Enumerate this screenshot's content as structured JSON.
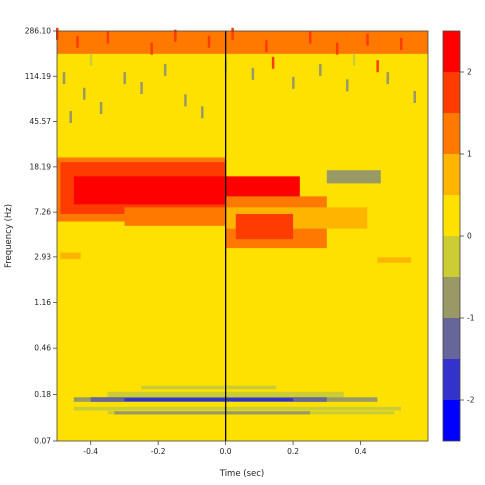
{
  "chart_data": {
    "type": "heatmap",
    "title": "",
    "xlabel": "Time (sec)",
    "ylabel": "Frequency (Hz)",
    "x_range": [
      -0.5,
      0.6
    ],
    "x_ticks": [
      -0.4,
      -0.2,
      0.0,
      0.2,
      0.4
    ],
    "x_tick_labels": [
      "-0.4",
      "-0.2",
      "0.0",
      "0.2",
      "0.4"
    ],
    "y_scale": "log",
    "y_range_hz": [
      0.07,
      286.1
    ],
    "y_ticks": [
      "0.07",
      "0.18",
      "0.46",
      "1.16",
      "2.93",
      "7.26",
      "18.19",
      "45.57",
      "114.19",
      "286.10"
    ],
    "event_marker_time": 0.0,
    "colorbar": {
      "range": [
        -2.5,
        2.5
      ],
      "ticks": [
        "-2",
        "-1",
        "0",
        "1",
        "2"
      ],
      "levels": [
        {
          "from": -2.5,
          "to": -2.0,
          "color": "#0000ff"
        },
        {
          "from": -2.0,
          "to": -1.5,
          "color": "#3333cc"
        },
        {
          "from": -1.5,
          "to": -1.0,
          "color": "#66669a"
        },
        {
          "from": -1.0,
          "to": -0.5,
          "color": "#999966"
        },
        {
          "from": -0.5,
          "to": 0.0,
          "color": "#cccc33"
        },
        {
          "from": 0.0,
          "to": 0.5,
          "color": "#ffe100"
        },
        {
          "from": 0.5,
          "to": 1.0,
          "color": "#ffb400"
        },
        {
          "from": 1.0,
          "to": 1.5,
          "color": "#ff7800"
        },
        {
          "from": 1.5,
          "to": 2.0,
          "color": "#ff3c00"
        },
        {
          "from": 2.0,
          "to": 2.5,
          "color": "#ff0000"
        }
      ]
    },
    "background_level": 0.25,
    "regions": [
      {
        "t0": -0.5,
        "t1": 0.0,
        "f0": 6.0,
        "f1": 22.0,
        "level": 1.25
      },
      {
        "t0": -0.49,
        "t1": 0.0,
        "f0": 7.0,
        "f1": 20.0,
        "level": 1.75
      },
      {
        "t0": -0.45,
        "t1": 0.22,
        "f0": 8.5,
        "f1": 15.0,
        "level": 2.25
      },
      {
        "t0": -0.3,
        "t1": 0.05,
        "f0": 5.5,
        "f1": 8.0,
        "level": 1.25
      },
      {
        "t0": 0.0,
        "t1": 0.3,
        "f0": 3.5,
        "f1": 10.0,
        "level": 1.25
      },
      {
        "t0": 0.0,
        "t1": 0.42,
        "f0": 5.2,
        "f1": 8.0,
        "level": 0.75
      },
      {
        "t0": 0.03,
        "t1": 0.2,
        "f0": 4.2,
        "f1": 7.0,
        "level": 1.75
      },
      {
        "t0": -0.49,
        "t1": -0.43,
        "f0": 2.8,
        "f1": 3.2,
        "level": 0.75
      },
      {
        "t0": 0.45,
        "t1": 0.55,
        "f0": 2.6,
        "f1": 2.9,
        "level": 0.75
      },
      {
        "t0": 0.3,
        "t1": 0.46,
        "f0": 13.0,
        "f1": 17.0,
        "level": -0.75
      },
      {
        "t0": -0.5,
        "t1": 0.6,
        "f0": 180.0,
        "f1": 286.1,
        "level": 1.25
      },
      {
        "t0": -0.25,
        "t1": 0.15,
        "f0": 0.2,
        "f1": 0.215,
        "level": -0.25
      },
      {
        "t0": -0.35,
        "t1": 0.35,
        "f0": 0.17,
        "f1": 0.19,
        "level": -0.25
      },
      {
        "t0": -0.45,
        "t1": 0.45,
        "f0": 0.155,
        "f1": 0.17,
        "level": -0.75
      },
      {
        "t0": -0.4,
        "t1": 0.3,
        "f0": 0.155,
        "f1": 0.17,
        "level": -1.25
      },
      {
        "t0": -0.3,
        "t1": 0.2,
        "f0": 0.157,
        "f1": 0.167,
        "level": -1.75
      },
      {
        "t0": -0.45,
        "t1": 0.52,
        "f0": 0.13,
        "f1": 0.14,
        "level": -0.25
      },
      {
        "t0": -0.35,
        "t1": 0.5,
        "f0": 0.12,
        "f1": 0.128,
        "level": -0.25
      },
      {
        "t0": -0.33,
        "t1": 0.25,
        "f0": 0.12,
        "f1": 0.128,
        "level": -0.75
      }
    ],
    "speckles": [
      {
        "t": -0.5,
        "f": 270,
        "level": 1.75
      },
      {
        "t": -0.44,
        "f": 230,
        "level": 1.75
      },
      {
        "t": -0.35,
        "f": 250,
        "level": 1.75
      },
      {
        "t": -0.22,
        "f": 200,
        "level": 1.75
      },
      {
        "t": -0.15,
        "f": 260,
        "level": 1.75
      },
      {
        "t": -0.05,
        "f": 230,
        "level": 1.75
      },
      {
        "t": 0.02,
        "f": 270,
        "level": 1.75
      },
      {
        "t": 0.12,
        "f": 210,
        "level": 1.75
      },
      {
        "t": 0.25,
        "f": 250,
        "level": 1.75
      },
      {
        "t": 0.33,
        "f": 200,
        "level": 1.75
      },
      {
        "t": 0.42,
        "f": 240,
        "level": 1.75
      },
      {
        "t": 0.52,
        "f": 220,
        "level": 1.75
      },
      {
        "t": -0.48,
        "f": 110,
        "level": -0.75
      },
      {
        "t": -0.42,
        "f": 80,
        "level": -0.75
      },
      {
        "t": -0.37,
        "f": 60,
        "level": -0.75
      },
      {
        "t": -0.3,
        "f": 110,
        "level": -0.75
      },
      {
        "t": -0.25,
        "f": 90,
        "level": -0.75
      },
      {
        "t": -0.12,
        "f": 70,
        "level": -0.75
      },
      {
        "t": -0.07,
        "f": 55,
        "level": -0.75
      },
      {
        "t": 0.08,
        "f": 120,
        "level": -0.75
      },
      {
        "t": 0.2,
        "f": 100,
        "level": -0.75
      },
      {
        "t": 0.28,
        "f": 130,
        "level": -0.75
      },
      {
        "t": 0.36,
        "f": 95,
        "level": -0.75
      },
      {
        "t": 0.48,
        "f": 110,
        "level": -0.75
      },
      {
        "t": 0.56,
        "f": 75,
        "level": -0.75
      },
      {
        "t": -0.46,
        "f": 50,
        "level": -0.75
      },
      {
        "t": -0.18,
        "f": 130,
        "level": -0.75
      },
      {
        "t": 0.14,
        "f": 150,
        "level": 1.75
      },
      {
        "t": 0.45,
        "f": 140,
        "level": 1.75
      },
      {
        "t": -0.4,
        "f": 160,
        "level": -0.25
      },
      {
        "t": 0.0,
        "f": 140,
        "level": -0.25
      },
      {
        "t": 0.38,
        "f": 160,
        "level": -0.25
      }
    ]
  }
}
